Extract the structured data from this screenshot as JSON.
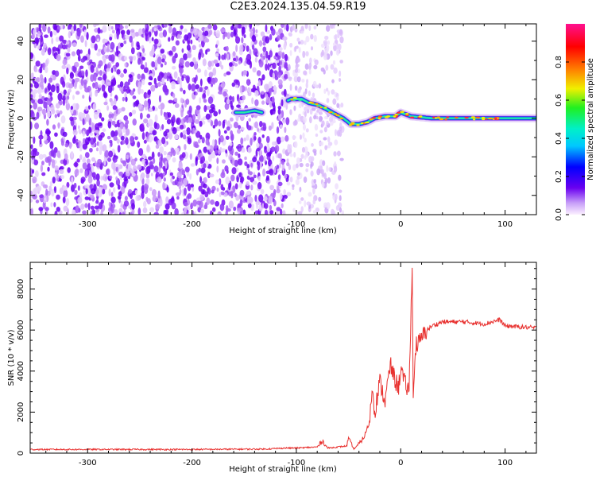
{
  "title": "C2E3.2024.135.04.59.R19",
  "colors": {
    "snr_line": "#e8312f",
    "signal_low": "#5a08ea",
    "signal_mid": "#00d0c0",
    "signal_peak": "#ff2a3c",
    "noise_halo": "#d9b8f5"
  },
  "chart_data": [
    {
      "type": "heatmap",
      "name": "spectrogram",
      "title": "C2E3.2024.135.04.59.R19",
      "xlabel": "Height of straight line (km)",
      "ylabel": "Frequency (Hz)",
      "xlim": [
        -355,
        130
      ],
      "ylim": [
        -50,
        49
      ],
      "xticks": [
        -300,
        -200,
        -100,
        0,
        100
      ],
      "yticks": [
        -40,
        -20,
        0,
        20,
        40
      ],
      "noise_region": {
        "x_from": -355,
        "x_to": -108,
        "sparse_to": -55
      },
      "ridge": [
        {
          "x": -158,
          "y": 3
        },
        {
          "x": -150,
          "y": 3
        },
        {
          "x": -140,
          "y": 4
        },
        {
          "x": -133,
          "y": 3
        },
        {
          "x": -105,
          "y": 10
        },
        {
          "x": -95,
          "y": 10
        },
        {
          "x": -88,
          "y": 8
        },
        {
          "x": -80,
          "y": 7
        },
        {
          "x": -72,
          "y": 5
        },
        {
          "x": -62,
          "y": 2
        },
        {
          "x": -55,
          "y": 0
        },
        {
          "x": -48,
          "y": -3
        },
        {
          "x": -40,
          "y": -3
        },
        {
          "x": -32,
          "y": -2
        },
        {
          "x": -25,
          "y": 0
        },
        {
          "x": -15,
          "y": 1
        },
        {
          "x": -5,
          "y": 1
        },
        {
          "x": 0,
          "y": 3
        },
        {
          "x": 10,
          "y": 1
        },
        {
          "x": 30,
          "y": 0
        },
        {
          "x": 60,
          "y": 0
        },
        {
          "x": 90,
          "y": 0
        },
        {
          "x": 130,
          "y": 0
        }
      ],
      "colorbar": {
        "label": "Normalized spectral amplitude",
        "range": [
          0,
          1
        ],
        "ticks": [
          0.0,
          0.2,
          0.4,
          0.6,
          0.8
        ],
        "tick_labels": [
          "0.0",
          "0.2",
          "0.4",
          "0.6",
          "0.8"
        ]
      }
    },
    {
      "type": "line",
      "name": "snr",
      "xlabel": "Height of straight line (km)",
      "ylabel": "SNR (10 * v/v)",
      "xlim": [
        -355,
        130
      ],
      "ylim": [
        0,
        9300
      ],
      "xticks": [
        -300,
        -200,
        -100,
        0,
        100
      ],
      "yticks": [
        0,
        2000,
        4000,
        6000,
        8000
      ],
      "x": [
        -355,
        -300,
        -200,
        -130,
        -110,
        -100,
        -80,
        -75,
        -70,
        -60,
        -52,
        -50,
        -45,
        -40,
        -35,
        -30,
        -27,
        -25,
        -20,
        -15,
        -10,
        -5,
        -2,
        0,
        3,
        8,
        11,
        12,
        14,
        15,
        18,
        20,
        25,
        30,
        40,
        60,
        80,
        95,
        100,
        130
      ],
      "values": [
        180,
        180,
        180,
        200,
        250,
        250,
        300,
        600,
        250,
        300,
        350,
        700,
        200,
        450,
        800,
        1500,
        3300,
        2000,
        3500,
        2500,
        4300,
        3500,
        3200,
        4200,
        3500,
        3000,
        9300,
        2500,
        5000,
        5300,
        5400,
        5600,
        6000,
        6200,
        6400,
        6400,
        6300,
        6500,
        6200,
        6100
      ]
    }
  ]
}
